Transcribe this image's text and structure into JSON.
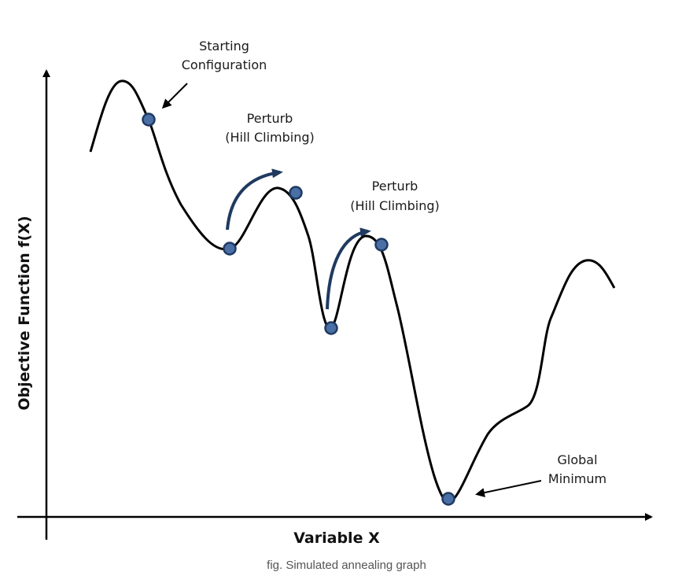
{
  "annotations": {
    "start_line1": "Starting",
    "start_line2": "Configuration",
    "perturb1_line1": "Perturb",
    "perturb1_line2": "(Hill Climbing)",
    "perturb2_line1": "Perturb",
    "perturb2_line2": "(Hill Climbing)",
    "global_line1": "Global",
    "global_line2": "Minimum"
  },
  "axes": {
    "x_title": "Variable X",
    "y_title": "Objective Function f(X)"
  },
  "caption": "fig. Simulated annealing graph",
  "colors": {
    "curve": "#000000",
    "point_fill": "#4a6fa5",
    "point_stroke": "#1f3a63",
    "hop_arrow": "#1f3a5f",
    "axis": "#000000"
  }
}
